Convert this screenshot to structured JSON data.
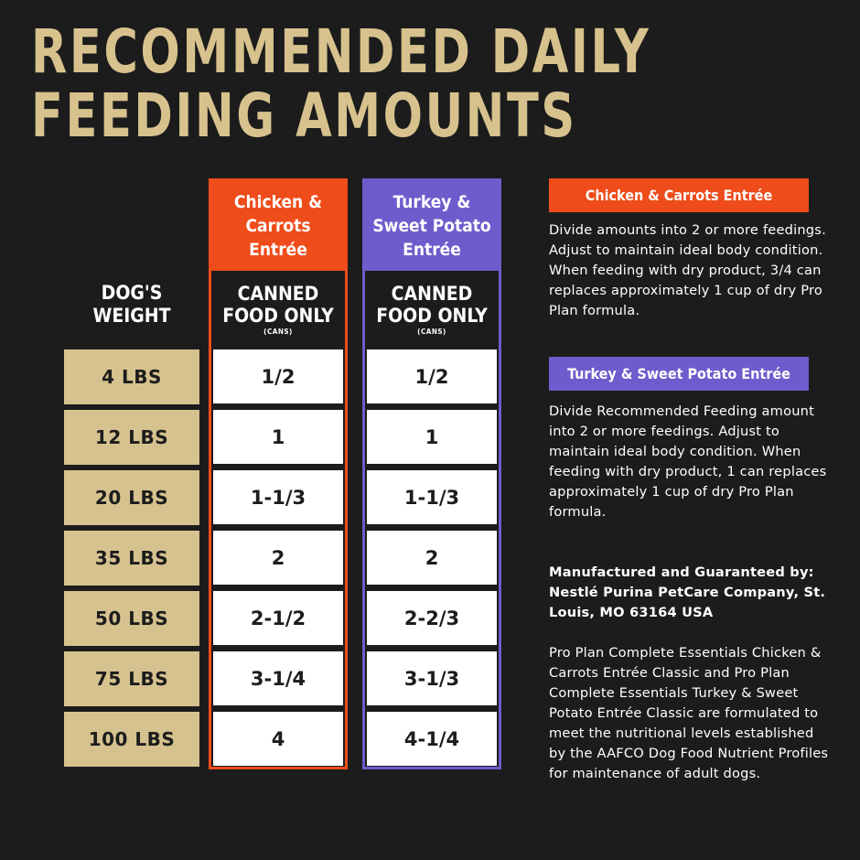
{
  "title": {
    "line1": "RECOMMENDED DAILY",
    "line2": "FEEDING AMOUNTS"
  },
  "weight_header": {
    "line1": "DOG'S",
    "line2": "WEIGHT"
  },
  "weights": [
    "4 LBS",
    "12 LBS",
    "20 LBS",
    "35 LBS",
    "50 LBS",
    "75 LBS",
    "100 LBS"
  ],
  "columns": [
    {
      "name_lines": [
        "Chicken &",
        "Carrots",
        "Entrée"
      ],
      "sub_line1": "CANNED",
      "sub_line2": "FOOD ONLY",
      "sub_small": "(CANS)",
      "values": [
        "1/2",
        "1",
        "1-1/3",
        "2",
        "2-1/2",
        "3-1/4",
        "4"
      ],
      "color": "#ee4c1a"
    },
    {
      "name_lines": [
        "Turkey &",
        "Sweet Potato",
        "Entrée"
      ],
      "sub_line1": "CANNED",
      "sub_line2": "FOOD ONLY",
      "sub_small": "(CANS)",
      "values": [
        "1/2",
        "1",
        "1-1/3",
        "2",
        "2-2/3",
        "3-1/3",
        "4-1/4"
      ],
      "color": "#6f5bcc"
    }
  ],
  "side": {
    "chicken_badge": "Chicken & Carrots Entrée",
    "chicken_text": "Divide amounts into 2 or more feedings. Adjust to maintain ideal body condition. When feeding with dry product, 3/4 can replaces approximately 1 cup of dry Pro Plan formula.",
    "turkey_badge": "Turkey & Sweet Potato Entrée",
    "turkey_text": "Divide Recommended Feeding amount into 2 or more feedings. Adjust to maintain ideal body condition. When feeding with dry product, 1 can replaces approximately 1 cup of dry Pro Plan formula.",
    "manufacturer": "Manufactured and Guaranteed by: Nestlé Purina PetCare Company, St. Louis, MO 63164 USA",
    "aafco": "Pro Plan Complete Essentials Chicken & Carrots Entrée Classic and Pro Plan Complete Essentials Turkey & Sweet Potato Entrée Classic are formulated to meet the nutritional levels established by the AAFCO Dog Food Nutrient Profiles for maintenance of adult dogs."
  },
  "colors": {
    "background": "#1c1c1c",
    "gold": "#d6c28f",
    "orange": "#ee4c1a",
    "purple": "#6f5bcc"
  }
}
